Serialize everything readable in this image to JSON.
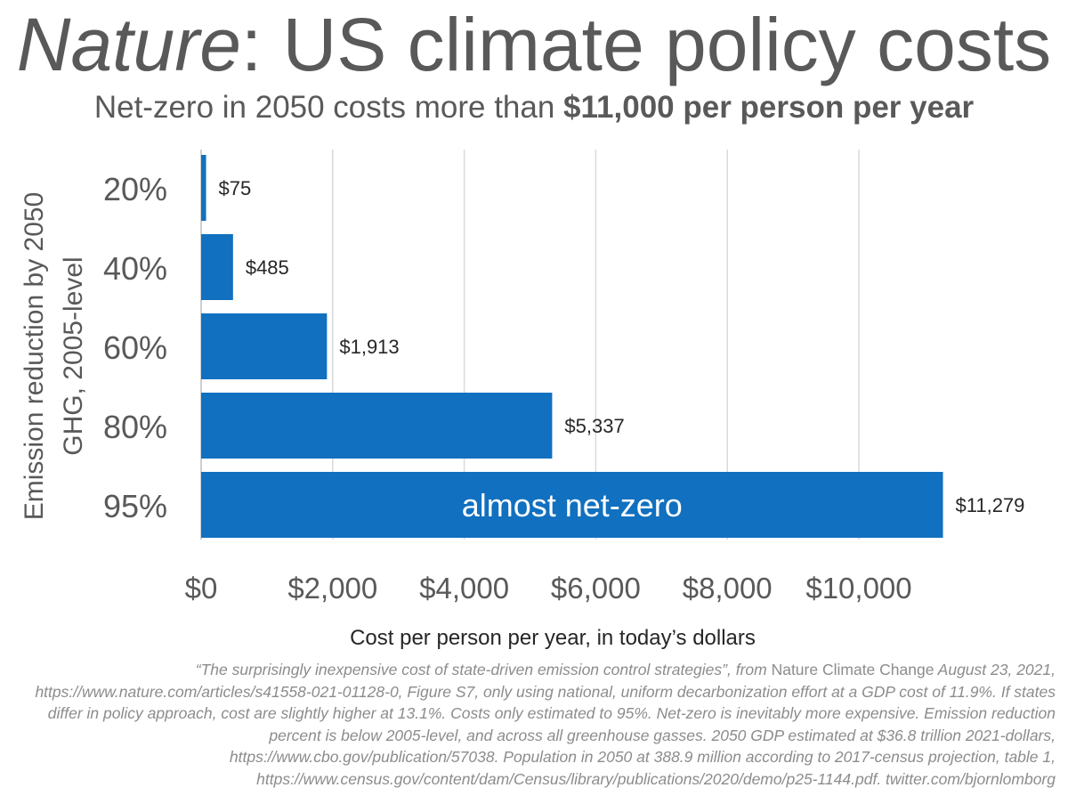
{
  "title": {
    "italic": "Nature",
    "rest": ": US climate policy costs"
  },
  "subtitle": {
    "plain": "Net-zero in 2050 costs more than ",
    "bold": "$11,000 per person per year"
  },
  "chart_data": {
    "type": "bar",
    "orientation": "horizontal",
    "categories": [
      "20%",
      "40%",
      "60%",
      "80%",
      "95%"
    ],
    "values": [
      75,
      485,
      1913,
      5337,
      11279
    ],
    "data_labels": [
      "$75",
      "$485",
      "$1,913",
      "$5,337",
      "$11,279"
    ],
    "bar_annotation": "almost net-zero",
    "bar_annotation_index": 4,
    "ylabel_lines": [
      "Emission reduction by 2050",
      "GHG, 2005-level"
    ],
    "xlabel": "Cost per person per year, in today’s dollars",
    "xticks": [
      0,
      2000,
      4000,
      6000,
      8000,
      10000
    ],
    "xtick_labels": [
      "$0",
      "$2,000",
      "$4,000",
      "$6,000",
      "$8,000",
      "$10,000"
    ],
    "xlim": [
      0,
      12000
    ],
    "grid": true,
    "bar_color": "#1170BF",
    "grid_color": "#D9D9D9"
  },
  "footnote": {
    "q": "“The surprisingly inexpensive cost of state-driven emission control strategies”, from ",
    "journal": "Nature Climate Change",
    "rest": " August 23, 2021, https://www.nature.com/articles/s41558-021-01128-0, Figure S7, only using national, uniform decarbonization effort at a GDP cost of 11.9%. If states differ in policy approach, cost are slightly higher at 13.1%. Costs only estimated to 95%. Net-zero is inevitably more expensive. Emission reduction percent is below 2005-level, and across all greenhouse gasses. 2050 GDP estimated at $36.8 trillion 2021-dollars, https://www.cbo.gov/publication/57038. Population in 2050 at 388.9 million according to 2017-census projection, table 1, https://www.census.gov/content/dam/Census/library/publications/2020/demo/p25-1144.pdf. twitter.com/bjornlomborg"
  }
}
